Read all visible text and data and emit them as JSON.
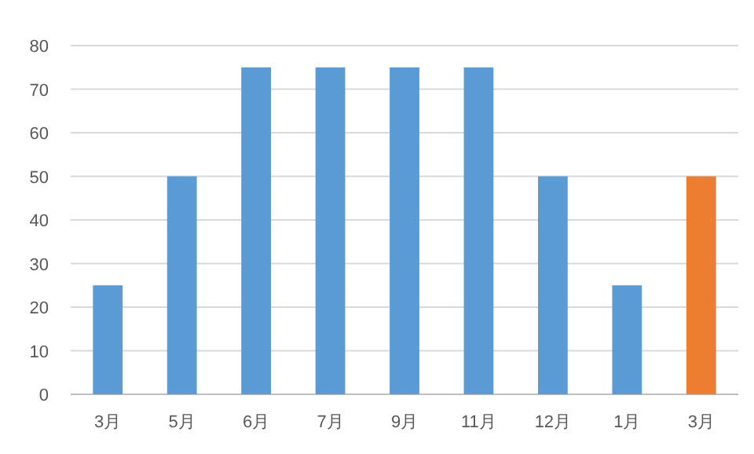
{
  "chart_data": {
    "type": "bar",
    "categories": [
      "3月",
      "5月",
      "6月",
      "7月",
      "9月",
      "11月",
      "12月",
      "1月",
      "3月"
    ],
    "values": [
      25,
      50,
      75,
      75,
      75,
      75,
      50,
      25,
      50
    ],
    "colors": [
      "#5b9bd5",
      "#5b9bd5",
      "#5b9bd5",
      "#5b9bd5",
      "#5b9bd5",
      "#5b9bd5",
      "#5b9bd5",
      "#5b9bd5",
      "#ed7d31"
    ],
    "ylim": [
      0,
      80
    ],
    "yticks": [
      0,
      10,
      20,
      30,
      40,
      50,
      60,
      70,
      80
    ],
    "grid": "y"
  }
}
